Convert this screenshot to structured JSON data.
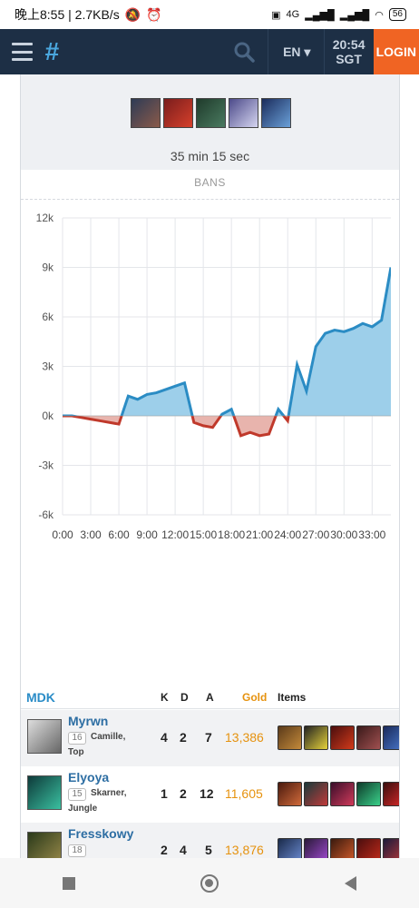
{
  "status_bar": {
    "time_speed": "晚上8:55 | 2.7KB/s",
    "network": "4G",
    "battery": "56"
  },
  "header": {
    "logo": "#",
    "language": "EN ▾",
    "time": "20:54",
    "timezone": "SGT",
    "login_label": "LOGIN"
  },
  "match": {
    "duration": "35 min 15 sec",
    "bans_label": "BANS"
  },
  "chart_data": {
    "type": "area",
    "x_tick_labels": [
      "0:00",
      "3:00",
      "6:00",
      "9:00",
      "12:00",
      "15:00",
      "18:00",
      "21:00",
      "24:00",
      "27:00",
      "30:00",
      "33:00"
    ],
    "x_minutes": [
      0,
      1,
      2,
      3,
      4,
      5,
      6,
      7,
      8,
      9,
      10,
      11,
      12,
      13,
      14,
      15,
      16,
      17,
      18,
      19,
      20,
      21,
      22,
      23,
      24,
      25,
      26,
      27,
      28,
      29,
      30,
      31,
      32,
      33,
      34,
      35
    ],
    "values": [
      0,
      0,
      -100,
      -200,
      -300,
      -400,
      -500,
      1200,
      1000,
      1300,
      1400,
      1600,
      1800,
      2000,
      -400,
      -600,
      -700,
      100,
      400,
      -1200,
      -1000,
      -1200,
      -1100,
      400,
      -300,
      3100,
      1500,
      4200,
      5000,
      5200,
      5100,
      5300,
      5600,
      5400,
      5800,
      9000
    ],
    "y_tick_labels": [
      "12k",
      "9k",
      "6k",
      "3k",
      "0k",
      "-3k",
      "-6k"
    ],
    "ylim": [
      -6000,
      12000
    ],
    "xlim": [
      0,
      35
    ],
    "colors": {
      "positive": "#2b8cc4",
      "positive_fill": "#9dcfea",
      "negative": "#c0392b",
      "negative_fill": "#e8b4ad"
    },
    "grid": true
  },
  "scoreboard": {
    "team_name": "MDK",
    "col_k": "K",
    "col_d": "D",
    "col_a": "A",
    "col_gold": "Gold",
    "col_items": "Items",
    "players": [
      {
        "name": "Myrwn",
        "level": "16",
        "champion": "Camille,",
        "role": "Top",
        "k": "4",
        "d": "2",
        "a": "7",
        "gold": "13,386"
      },
      {
        "name": "Elyoya",
        "level": "15",
        "champion": "Skarner,",
        "role": "Jungle",
        "k": "1",
        "d": "2",
        "a": "12",
        "gold": "11,605"
      },
      {
        "name": "Fresskowy",
        "level": "18",
        "champion": "",
        "role": "",
        "k": "2",
        "d": "4",
        "a": "5",
        "gold": "13,876"
      }
    ]
  }
}
